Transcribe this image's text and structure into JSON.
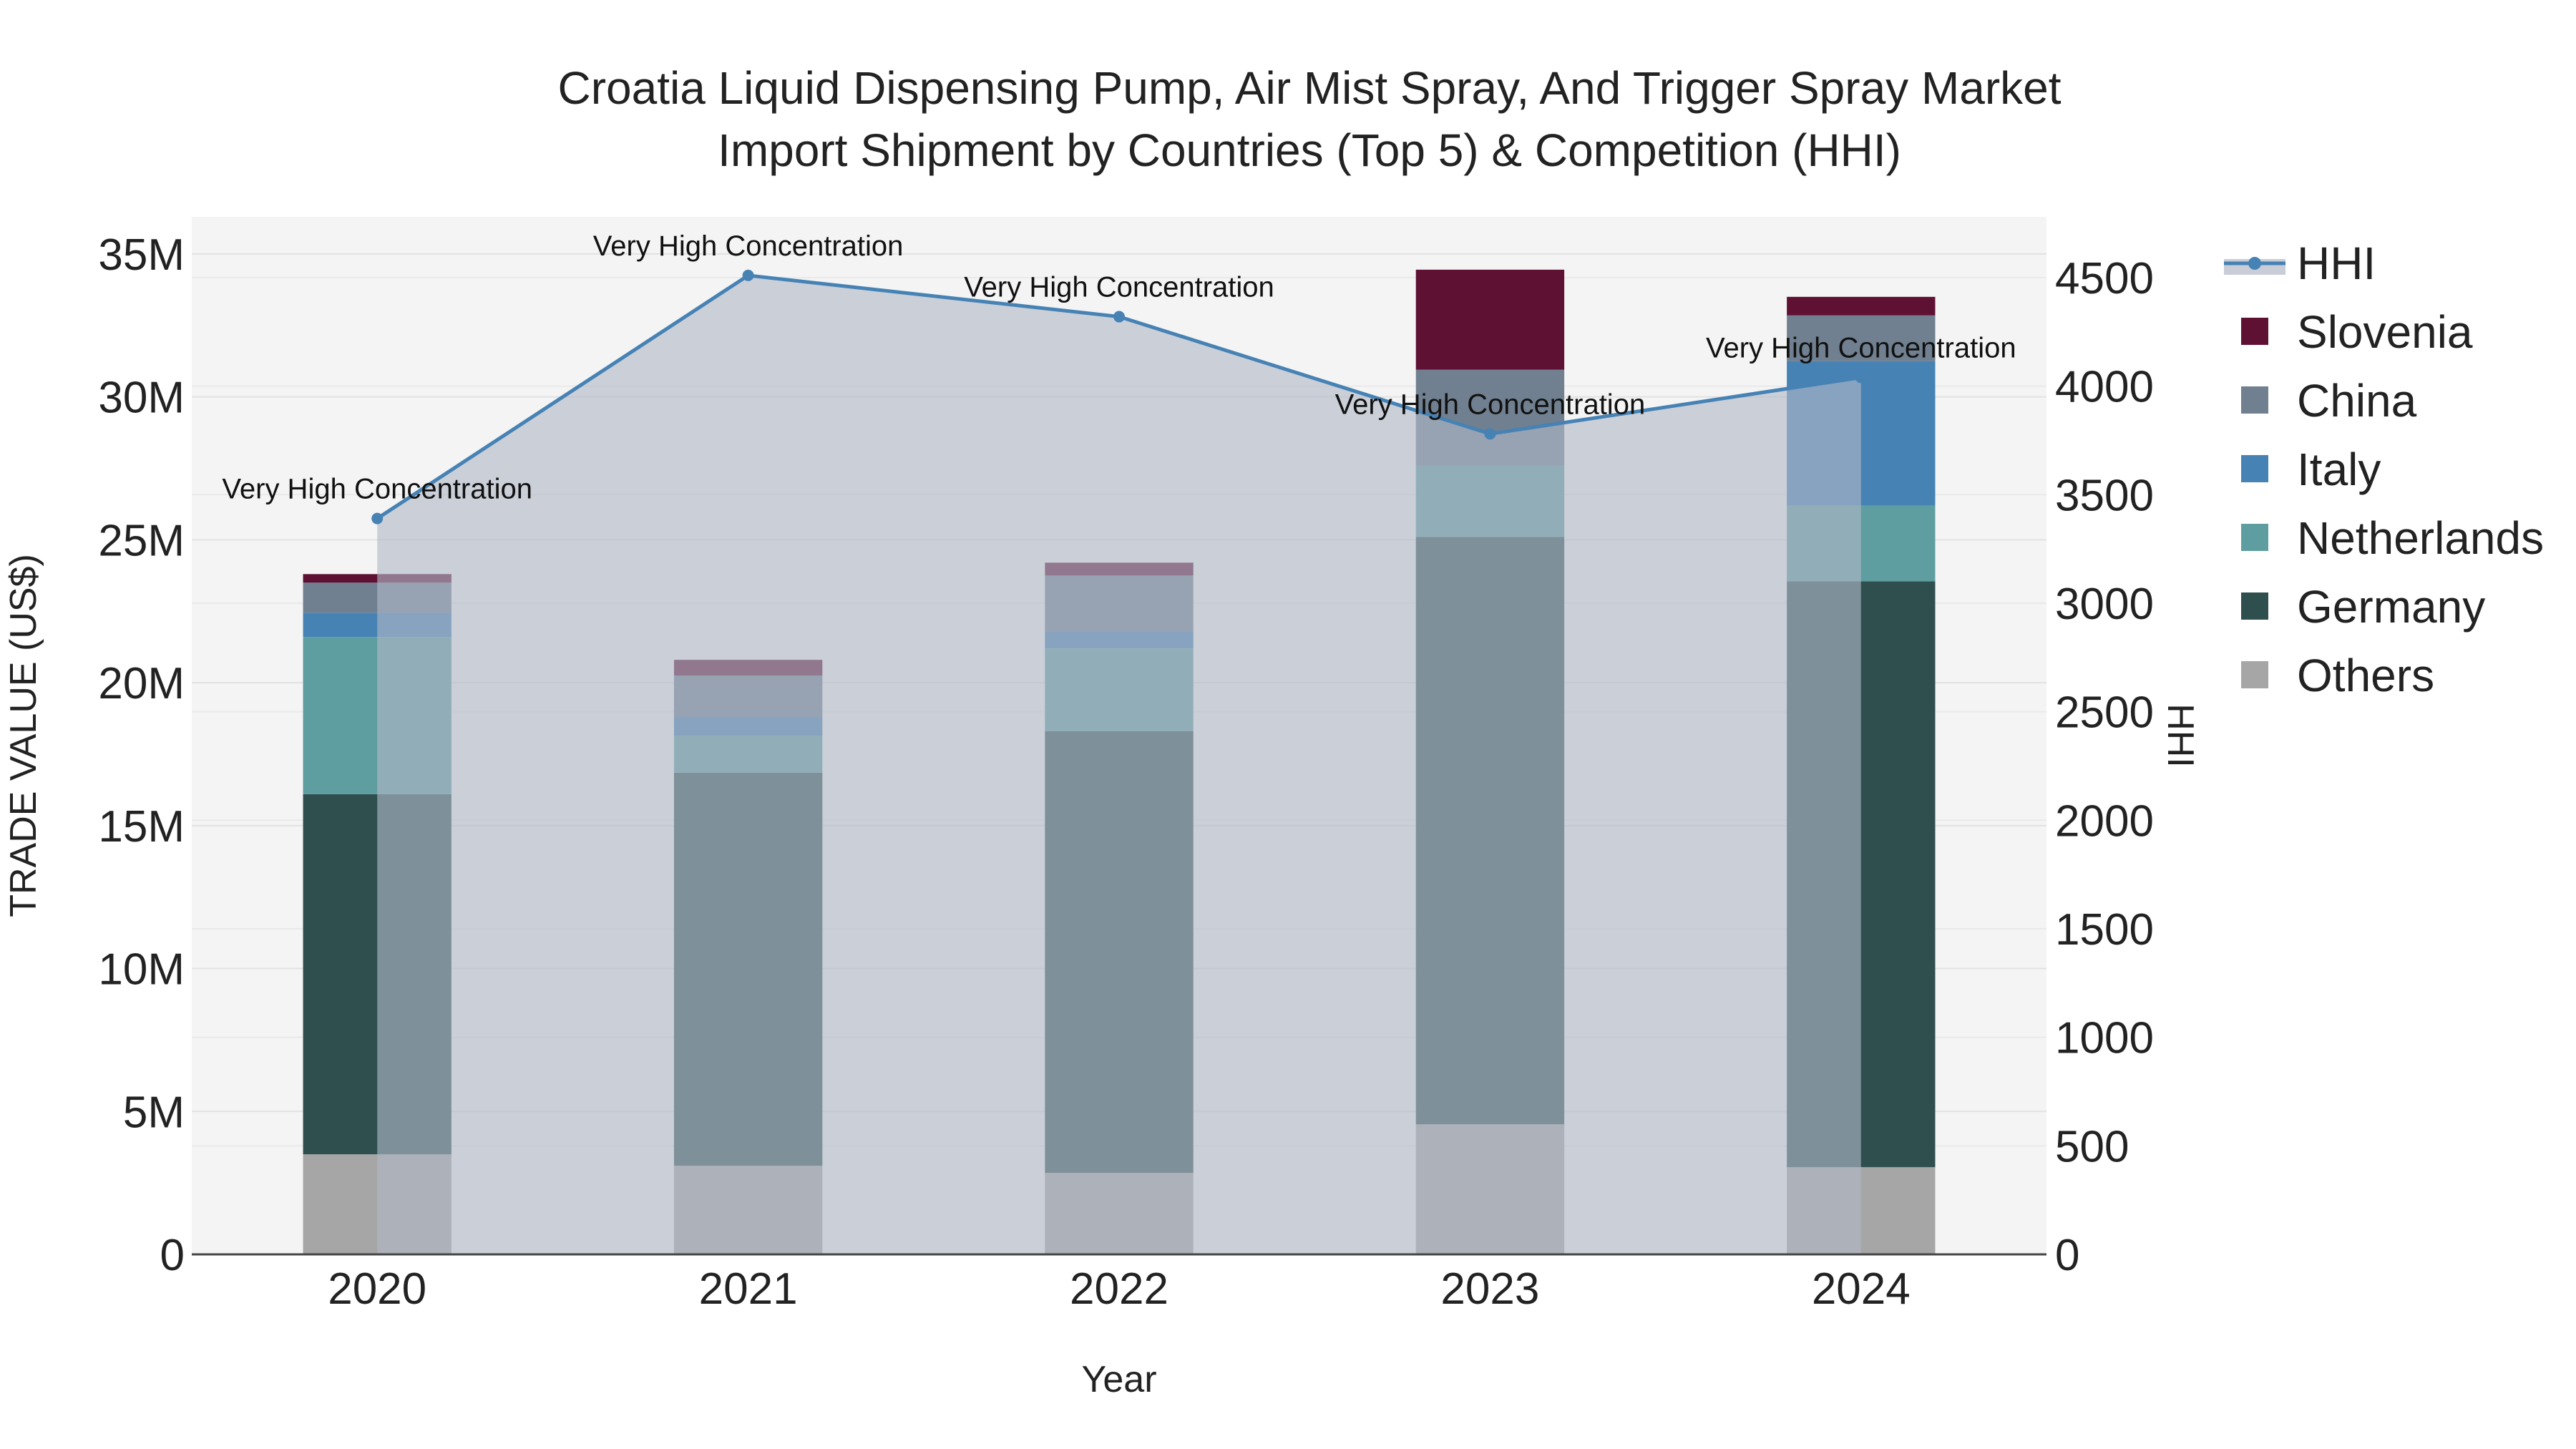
{
  "chart_data": {
    "type": "bar",
    "title_line1": "Croatia Liquid Dispensing Pump, Air Mist Spray, And Trigger Spray Market",
    "title_line2": "Import Shipment by Countries (Top 5) & Competition (HHI)",
    "xlabel": "Year",
    "ylabel": "TRADE VALUE (US$)",
    "y2label": "HHI",
    "categories": [
      "2020",
      "2021",
      "2022",
      "2023",
      "2024"
    ],
    "ylim": [
      0,
      36300000
    ],
    "y_ticks": [
      0,
      5000000,
      10000000,
      15000000,
      20000000,
      25000000,
      30000000,
      35000000
    ],
    "y_tick_labels": [
      "0",
      "5M",
      "10M",
      "15M",
      "20M",
      "25M",
      "30M",
      "35M"
    ],
    "y2lim": [
      0,
      4780
    ],
    "y2_ticks": [
      0,
      500,
      1000,
      1500,
      2000,
      2500,
      3000,
      3500,
      4000,
      4500
    ],
    "y2_tick_labels": [
      "0",
      "500",
      "1000",
      "1500",
      "2000",
      "2500",
      "3000",
      "3500",
      "4000",
      "4500"
    ],
    "series": [
      {
        "name": "Others",
        "color": "#a6a6a6",
        "values": [
          3500000,
          3100000,
          2850000,
          4550000,
          3050000
        ]
      },
      {
        "name": "Germany",
        "color": "#2f4f4f",
        "values": [
          12600000,
          13750000,
          15450000,
          20550000,
          20500000
        ]
      },
      {
        "name": "Netherlands",
        "color": "#5f9ea0",
        "values": [
          5500000,
          1300000,
          2900000,
          2500000,
          2650000
        ]
      },
      {
        "name": "Italy",
        "color": "#4682b4",
        "values": [
          850000,
          650000,
          600000,
          0,
          5050000
        ]
      },
      {
        "name": "China",
        "color": "#708090",
        "values": [
          1050000,
          1450000,
          1950000,
          3350000,
          1600000
        ]
      },
      {
        "name": "Slovenia",
        "color": "#5f1133",
        "values": [
          300000,
          550000,
          450000,
          3500000,
          650000
        ]
      }
    ],
    "hhi": {
      "name": "HHI",
      "color": "#4682b4",
      "values": [
        3390,
        4510,
        4320,
        3780,
        4040
      ],
      "labels": [
        "Very High Concentration",
        "Very High Concentration",
        "Very High Concentration",
        "Very High Concentration",
        "Very High Concentration"
      ]
    },
    "legend_order": [
      "HHI",
      "Slovenia",
      "China",
      "Italy",
      "Netherlands",
      "Germany",
      "Others"
    ],
    "legend_position": "top-right"
  }
}
